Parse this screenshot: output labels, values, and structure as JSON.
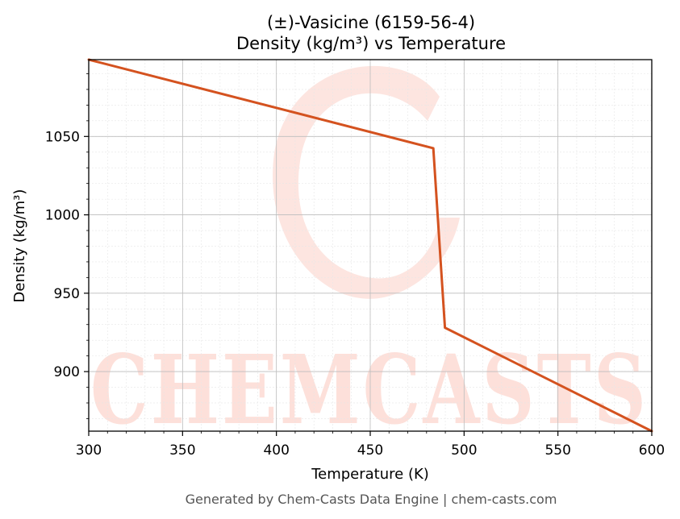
{
  "chart_data": {
    "type": "line",
    "title": "(±)-Vasicine (6159-56-4)",
    "subtitle": "Density (kg/m³) vs Temperature",
    "xlabel": "Temperature (K)",
    "ylabel": "Density (kg/m³)",
    "xlim": [
      300,
      600
    ],
    "ylim": [
      862,
      1099
    ],
    "x_ticks": [
      300,
      350,
      400,
      450,
      500,
      550,
      600
    ],
    "y_ticks": [
      900,
      950,
      1000,
      1050
    ],
    "grid": true,
    "series": [
      {
        "color": "#d4521f",
        "x": [
          300,
          483.6,
          489.8,
          600
        ],
        "y": [
          1099,
          1042.5,
          928,
          862
        ]
      }
    ]
  },
  "watermark": {
    "text": "CHEMCASTS",
    "color": "#fde0da"
  },
  "footer": "Generated by Chem-Casts Data Engine | chem-casts.com"
}
